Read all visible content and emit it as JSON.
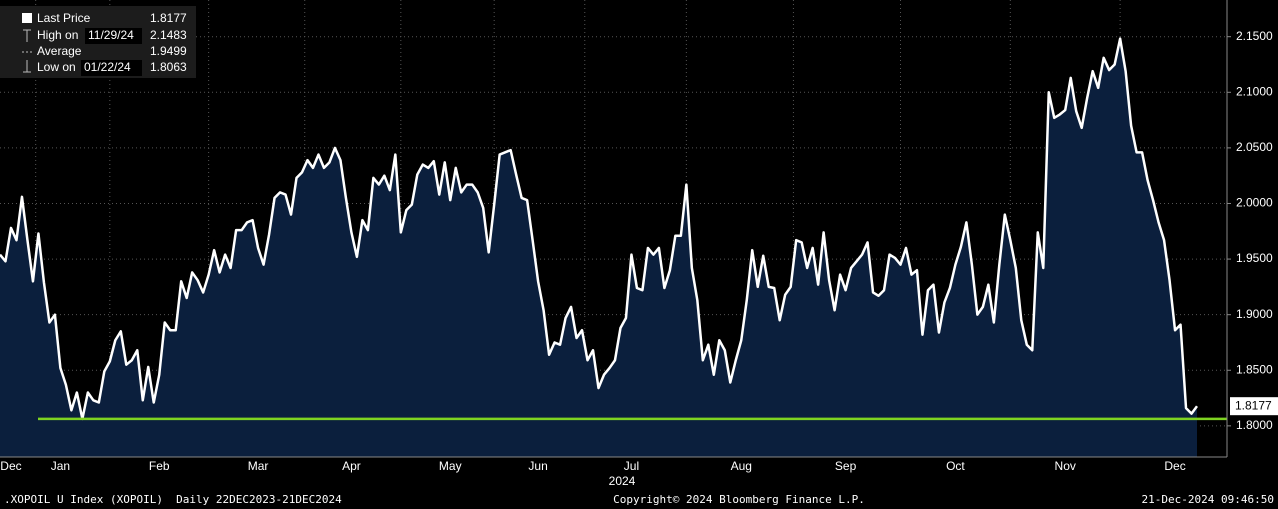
{
  "chart_data": {
    "type": "area",
    "series": [
      {
        "name": "Last Price",
        "color": "#ffffff",
        "fill": "#0b1f3d",
        "values": [
          1.954,
          1.948,
          1.978,
          1.967,
          2.006,
          1.967,
          1.93,
          1.973,
          1.929,
          1.893,
          1.9,
          1.852,
          1.837,
          1.814,
          1.83,
          1.8063,
          1.83,
          1.823,
          1.821,
          1.849,
          1.858,
          1.877,
          1.885,
          1.855,
          1.859,
          1.868,
          1.823,
          1.853,
          1.821,
          1.846,
          1.893,
          1.886,
          1.886,
          1.93,
          1.915,
          1.938,
          1.931,
          1.92,
          1.936,
          1.958,
          1.938,
          1.954,
          1.942,
          1.976,
          1.976,
          1.983,
          1.985,
          1.96,
          1.945,
          1.972,
          2.005,
          2.01,
          2.008,
          1.99,
          2.023,
          2.028,
          2.039,
          2.032,
          2.044,
          2.032,
          2.037,
          2.05,
          2.039,
          2.005,
          1.974,
          1.952,
          1.985,
          1.976,
          2.023,
          2.017,
          2.025,
          2.012,
          2.044,
          1.974,
          1.994,
          1.999,
          2.026,
          2.035,
          2.032,
          2.038,
          2.008,
          2.037,
          2.003,
          2.032,
          2.01,
          2.017,
          2.017,
          2.01,
          1.996,
          1.956,
          1.999,
          2.044,
          2.046,
          2.048,
          2.026,
          2.005,
          2.003,
          1.967,
          1.93,
          1.904,
          1.864,
          1.875,
          1.873,
          1.897,
          1.907,
          1.879,
          1.886,
          1.859,
          1.868,
          1.834,
          1.846,
          1.852,
          1.859,
          1.888,
          1.897,
          1.954,
          1.924,
          1.922,
          1.96,
          1.954,
          1.96,
          1.924,
          1.94,
          1.971,
          1.971,
          2.017,
          1.942,
          1.913,
          1.859,
          1.873,
          1.846,
          1.877,
          1.868,
          1.839,
          1.859,
          1.877,
          1.913,
          1.958,
          1.925,
          1.953,
          1.925,
          1.924,
          1.895,
          1.918,
          1.925,
          1.967,
          1.965,
          1.942,
          1.96,
          1.927,
          1.974,
          1.931,
          1.904,
          1.936,
          1.922,
          1.942,
          1.948,
          1.954,
          1.965,
          1.92,
          1.917,
          1.922,
          1.954,
          1.951,
          1.945,
          1.96,
          1.936,
          1.94,
          1.882,
          1.922,
          1.927,
          1.884,
          1.911,
          1.924,
          1.945,
          1.961,
          1.983,
          1.945,
          1.9,
          1.907,
          1.927,
          1.893,
          1.945,
          1.99,
          1.967,
          1.942,
          1.895,
          1.873,
          1.868,
          1.974,
          1.942,
          2.1,
          2.077,
          2.08,
          2.084,
          2.113,
          2.083,
          2.068,
          2.095,
          2.119,
          2.104,
          2.131,
          2.12,
          2.125,
          2.1483,
          2.119,
          2.07,
          2.046,
          2.046,
          2.021,
          2.003,
          1.983,
          1.967,
          1.931,
          1.886,
          1.891,
          1.816,
          1.811,
          1.8177
        ]
      }
    ],
    "categories": [
      null,
      null,
      "Dec",
      null,
      null,
      null,
      null,
      null,
      null,
      null,
      null,
      "Jan",
      null,
      null,
      null,
      null,
      null,
      null,
      null,
      null,
      null,
      null,
      null,
      null,
      null,
      null,
      null,
      null,
      null,
      "Feb",
      null,
      null,
      null,
      null,
      null,
      null,
      null,
      null,
      null,
      null,
      null,
      null,
      null,
      null,
      null,
      null,
      null,
      "Mar",
      null,
      null,
      null,
      null,
      null,
      null,
      null,
      null,
      null,
      null,
      null,
      null,
      null,
      null,
      null,
      null,
      "Apr",
      null,
      null,
      null,
      null,
      null,
      null,
      null,
      null,
      null,
      null,
      null,
      null,
      null,
      null,
      null,
      null,
      null,
      "May",
      null,
      null,
      null,
      null,
      null,
      null,
      null,
      null,
      null,
      null,
      null,
      null,
      null,
      null,
      null,
      "Jun",
      null,
      null,
      null,
      null,
      null,
      null,
      null,
      null,
      null,
      null,
      null,
      null,
      null,
      null,
      null,
      null,
      "Jul",
      null,
      null,
      null,
      null,
      null,
      null,
      null,
      null,
      null,
      null,
      null,
      null,
      null,
      null,
      null,
      null,
      null,
      null,
      null,
      "Aug",
      null,
      null,
      null,
      null,
      null,
      null,
      null,
      null,
      null,
      null,
      null,
      null,
      null,
      null,
      null,
      null,
      null,
      null,
      "Sep",
      null,
      null,
      null,
      null,
      null,
      null,
      null,
      null,
      null,
      null,
      null,
      null,
      null,
      null,
      null,
      null,
      null,
      null,
      null,
      "Oct",
      null,
      null,
      null,
      null,
      null,
      null,
      null,
      null,
      null,
      null,
      null,
      null,
      null,
      null,
      null,
      null,
      null,
      null,
      null,
      "Nov",
      null,
      null,
      null,
      null,
      null,
      null,
      null,
      null,
      null,
      null,
      null,
      null,
      null,
      null,
      null,
      null,
      null,
      null,
      null,
      "Dec",
      null,
      null,
      null,
      null
    ],
    "year_label": "2024",
    "ylim": [
      1.772,
      2.183
    ],
    "yticks": [
      {
        "value": 1.8,
        "label": "1.8000"
      },
      {
        "value": 1.85,
        "label": "1.8500"
      },
      {
        "value": 1.9,
        "label": "1.9000"
      },
      {
        "value": 1.95,
        "label": "1.9500"
      },
      {
        "value": 2.0,
        "label": "2.0000"
      },
      {
        "value": 2.05,
        "label": "2.0500"
      },
      {
        "value": 2.1,
        "label": "2.1000"
      },
      {
        "value": 2.15,
        "label": "2.1500"
      }
    ],
    "grid": true,
    "low_line_color": "#7ed321",
    "legend": [
      {
        "label": "Last Price",
        "value": 1.8177
      },
      {
        "label": "High on",
        "date": "11/29/24",
        "value": 2.1483
      },
      {
        "label": "Average",
        "value": 1.9499
      },
      {
        "label": "Low on",
        "date": "01/22/24",
        "value": 1.8063
      }
    ]
  },
  "footer": {
    "left": ".XOPOIL U Index (XOPOIL)  Daily 22DEC2023-21DEC2024",
    "center": "Copyright© 2024 Bloomberg Finance L.P.",
    "right": "21-Dec-2024 09:46:50"
  }
}
